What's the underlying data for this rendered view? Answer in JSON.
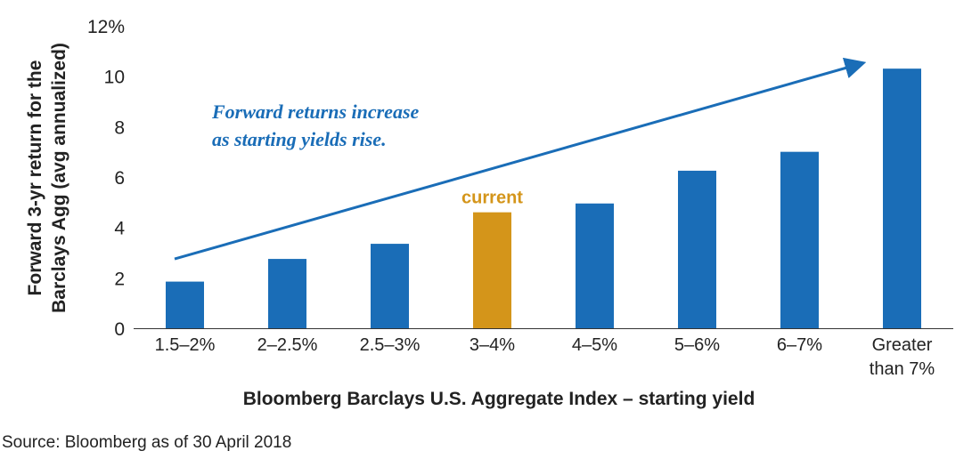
{
  "chart_data": {
    "type": "bar",
    "categories": [
      "1.5–2%",
      "2–2.5%",
      "2.5–3%",
      "3–4%",
      "4–5%",
      "5–6%",
      "6–7%",
      "Greater than 7%"
    ],
    "values": [
      1.85,
      2.75,
      3.35,
      4.6,
      4.95,
      6.25,
      7.0,
      10.3
    ],
    "highlight_index": 3,
    "highlight_label": "current",
    "ylabel": "Forward 3-yr return for the Barclays Agg (avg annualized)",
    "xlabel": "Bloomberg Barclays U.S. Aggregate Index – starting yield",
    "ylim": [
      0,
      12
    ],
    "yticks": [
      "0",
      "2",
      "4",
      "6",
      "8",
      "10",
      "12%"
    ],
    "annotation": "Forward returns increase as starting yields rise.",
    "trend_arrow": {
      "from": {
        "category_index": -0.1,
        "value": 2.75
      },
      "to": {
        "category_index": 6.6,
        "value": 10.5
      }
    },
    "colors": {
      "bar": "#1a6db7",
      "highlight": "#d4951a",
      "annotation": "#1a6db7",
      "arrow": "#1a6db7"
    },
    "grid": false,
    "legend": "none"
  },
  "source": "Source: Bloomberg as of 30 April 2018"
}
